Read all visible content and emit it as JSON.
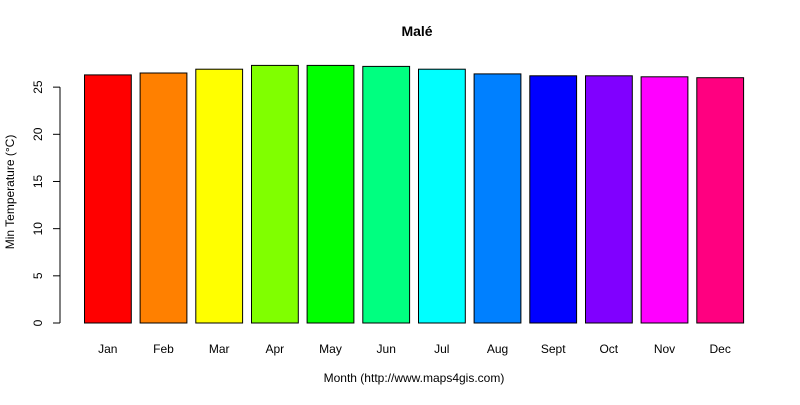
{
  "chart_data": {
    "type": "bar",
    "title": "Malé",
    "xlabel": "Month (http://www.maps4gis.com)",
    "ylabel": "Min Temperature (°C)",
    "categories": [
      "Jan",
      "Feb",
      "Mar",
      "Apr",
      "May",
      "Jun",
      "Jul",
      "Aug",
      "Sept",
      "Oct",
      "Nov",
      "Dec"
    ],
    "values": [
      26.3,
      26.5,
      26.9,
      27.3,
      27.3,
      27.2,
      26.9,
      26.4,
      26.2,
      26.2,
      26.1,
      26.0
    ],
    "colors": [
      "#FF0000",
      "#FF8000",
      "#FFFF00",
      "#80FF00",
      "#00FF00",
      "#00FF80",
      "#00FFFF",
      "#0080FF",
      "#0000FF",
      "#8000FF",
      "#FF00FF",
      "#FF0080"
    ],
    "ylim": [
      0,
      28.3
    ],
    "yticks": [
      0,
      5,
      10,
      15,
      20,
      25
    ],
    "grid": false,
    "legend": "none"
  }
}
